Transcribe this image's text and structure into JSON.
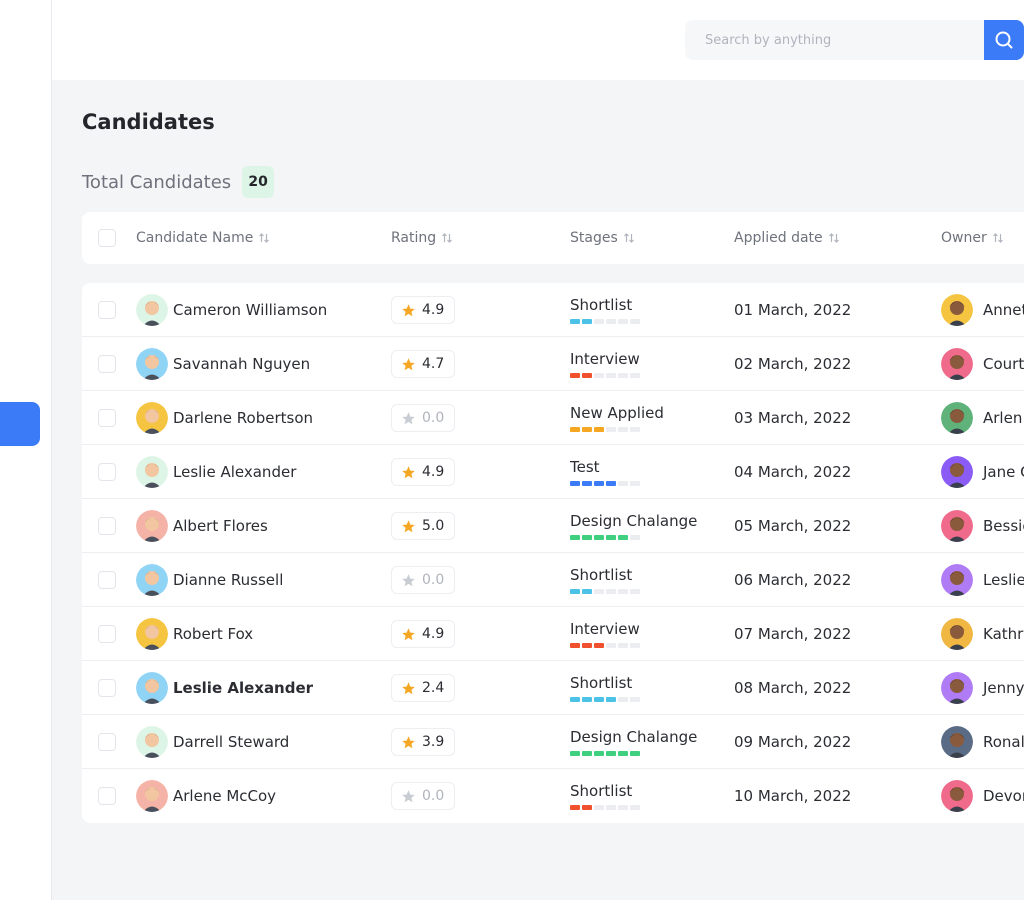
{
  "search": {
    "placeholder": "Search by anything"
  },
  "page": {
    "title": "Candidates",
    "total_label": "Total Candidates",
    "total_count": "20"
  },
  "columns": {
    "name": "Candidate Name",
    "rating": "Rating",
    "stages": "Stages",
    "applied": "Applied date",
    "owner": "Owner"
  },
  "colors": {
    "accent": "#3b7bf8",
    "star": "#f5a623",
    "shortlist": "#4cc3e6",
    "interview": "#f0502d",
    "new_applied": "#f5a623",
    "test": "#3b7bf8",
    "design": "#3ecf7f"
  },
  "rows": [
    {
      "name": "Cameron Williamson",
      "rating": "4.9",
      "stage": "Shortlist",
      "stage_filled": 2,
      "stage_color": "#4cc3e6",
      "date": "01 March, 2022",
      "owner": "Annet",
      "avatar_bg": "#dcf5e7",
      "owner_bg": "#f5c542"
    },
    {
      "name": "Savannah Nguyen",
      "rating": "4.7",
      "stage": "Interview",
      "stage_filled": 2,
      "stage_color": "#f0502d",
      "date": "02 March, 2022",
      "owner": "Court",
      "avatar_bg": "#8fd3f5",
      "owner_bg": "#f06a8c"
    },
    {
      "name": "Darlene Robertson",
      "rating": "0.0",
      "stage": "New Applied",
      "stage_filled": 3,
      "stage_color": "#f5a623",
      "date": "03 March, 2022",
      "owner": "Arlen",
      "avatar_bg": "#f5c542",
      "owner_bg": "#5fb37a"
    },
    {
      "name": "Leslie Alexander",
      "rating": "4.9",
      "stage": "Test",
      "stage_filled": 4,
      "stage_color": "#3b7bf8",
      "date": "04 March, 2022",
      "owner": "Jane C",
      "avatar_bg": "#dcf5e7",
      "owner_bg": "#8a5cf5"
    },
    {
      "name": "Albert Flores",
      "rating": "5.0",
      "stage": "Design Chalange",
      "stage_filled": 5,
      "stage_color": "#3ecf7f",
      "date": "05 March, 2022",
      "owner": "Bessie",
      "avatar_bg": "#f5b3a8",
      "owner_bg": "#f06a8c"
    },
    {
      "name": "Dianne Russell",
      "rating": "0.0",
      "stage": "Shortlist",
      "stage_filled": 2,
      "stage_color": "#4cc3e6",
      "date": "06 March, 2022",
      "owner": "Leslie",
      "avatar_bg": "#8fd3f5",
      "owner_bg": "#b07cf5"
    },
    {
      "name": "Robert Fox",
      "rating": "4.9",
      "stage": "Interview",
      "stage_filled": 3,
      "stage_color": "#f0502d",
      "date": "07 March, 2022",
      "owner": "Kathr",
      "avatar_bg": "#f5c542",
      "owner_bg": "#f0b742"
    },
    {
      "name": "Leslie Alexander",
      "rating": "2.4",
      "stage": "Shortlist",
      "stage_filled": 4,
      "stage_color": "#4cc3e6",
      "date": "08 March, 2022",
      "owner": "Jenny",
      "avatar_bg": "#8fd3f5",
      "owner_bg": "#b07cf5"
    },
    {
      "name": "Darrell Steward",
      "rating": "3.9",
      "stage": "Design Chalange",
      "stage_filled": 6,
      "stage_color": "#3ecf7f",
      "date": "09 March, 2022",
      "owner": "Ronal",
      "avatar_bg": "#dcf5e7",
      "owner_bg": "#5a6b86"
    },
    {
      "name": "Arlene McCoy",
      "rating": "0.0",
      "stage": "Shortlist",
      "stage_filled": 2,
      "stage_color": "#f0502d",
      "date": "10 March, 2022",
      "owner": "Devor",
      "avatar_bg": "#f5b3a8",
      "owner_bg": "#f06a8c"
    }
  ]
}
